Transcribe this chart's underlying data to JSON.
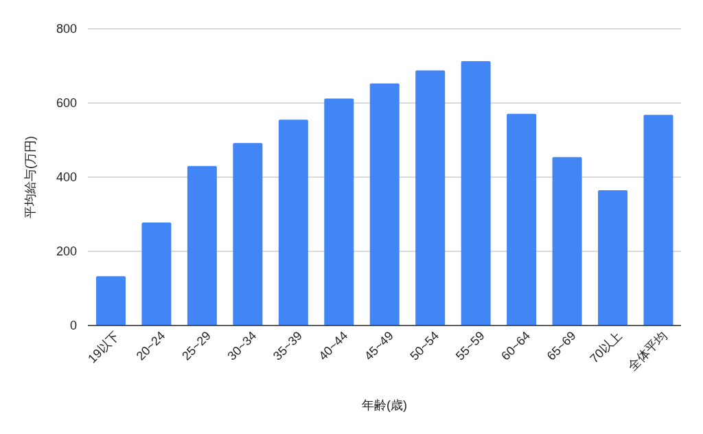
{
  "chart_data": {
    "type": "bar",
    "xlabel": "年齢(歳)",
    "ylabel": "平均給与(万円)",
    "categories": [
      "19以下",
      "20~24",
      "25~29",
      "30~34",
      "35~39",
      "40~44",
      "45~49",
      "50~54",
      "55~59",
      "60~64",
      "65~69",
      "70以上",
      "全体平均"
    ],
    "values": [
      133,
      278,
      430,
      492,
      555,
      612,
      653,
      688,
      713,
      571,
      454,
      365,
      568
    ],
    "color": "#4285f4",
    "ylim": [
      0,
      800
    ],
    "yticks": [
      0,
      200,
      400,
      600,
      800
    ],
    "grid": "y"
  }
}
